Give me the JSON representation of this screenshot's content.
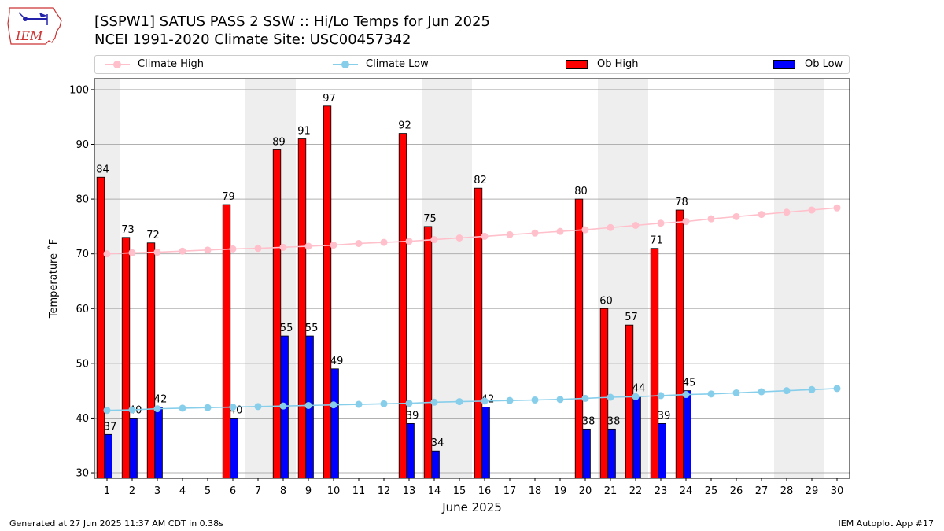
{
  "header": {
    "title_line1": "[SSPW1] SATUS PASS 2 SSW :: Hi/Lo Temps for Jun 2025",
    "title_line2": "NCEI 1991-2020 Climate Site: USC00457342",
    "logo_text": "IEM"
  },
  "legend": {
    "climate_high": "Climate High",
    "climate_low": "Climate Low",
    "ob_high": "Ob High",
    "ob_low": "Ob Low"
  },
  "footer": {
    "generated": "Generated at 27 Jun 2025 11:37 AM CDT in 0.38s",
    "app": "IEM Autoplot App #17"
  },
  "colors": {
    "climate_high": "#ffc0cb",
    "climate_low": "#87ceeb",
    "ob_high": "#ff0000",
    "ob_low": "#0000ff",
    "weekend_shade": "#eeeeee",
    "grid": "#b0b0b0"
  },
  "chart_data": {
    "type": "bar",
    "xlabel": "June 2025",
    "ylabel": "Temperature ˚F",
    "ylim": [
      29,
      102
    ],
    "xlim": [
      0.5,
      30.5
    ],
    "yticks": [
      30,
      40,
      50,
      60,
      70,
      80,
      90,
      100
    ],
    "x": [
      1,
      2,
      3,
      4,
      5,
      6,
      7,
      8,
      9,
      10,
      11,
      12,
      13,
      14,
      15,
      16,
      17,
      18,
      19,
      20,
      21,
      22,
      23,
      24,
      25,
      26,
      27,
      28,
      29,
      30
    ],
    "shaded_days": [
      1,
      7,
      8,
      14,
      15,
      21,
      22,
      28,
      29
    ],
    "grid": true,
    "legend_placement": "top",
    "series": [
      {
        "name": "Ob High",
        "kind": "bar",
        "values": [
          84,
          73,
          72,
          null,
          null,
          79,
          null,
          89,
          91,
          97,
          null,
          null,
          92,
          75,
          null,
          82,
          null,
          null,
          null,
          80,
          60,
          57,
          71,
          78,
          null,
          null,
          null,
          null,
          null,
          null
        ]
      },
      {
        "name": "Ob Low",
        "kind": "bar",
        "values": [
          37,
          40,
          42,
          null,
          null,
          40,
          null,
          55,
          55,
          49,
          null,
          null,
          39,
          34,
          null,
          42,
          null,
          null,
          null,
          38,
          38,
          44,
          39,
          45,
          null,
          null,
          null,
          null,
          null,
          null
        ]
      },
      {
        "name": "Climate High",
        "kind": "line",
        "values": [
          70.0,
          70.2,
          70.3,
          70.5,
          70.7,
          70.9,
          71.0,
          71.2,
          71.4,
          71.6,
          71.9,
          72.1,
          72.3,
          72.6,
          72.9,
          73.2,
          73.5,
          73.8,
          74.1,
          74.4,
          74.8,
          75.2,
          75.6,
          75.9,
          76.4,
          76.8,
          77.2,
          77.6,
          78.0,
          78.4
        ]
      },
      {
        "name": "Climate Low",
        "kind": "line",
        "values": [
          41.4,
          41.5,
          41.7,
          41.8,
          41.9,
          42.0,
          42.1,
          42.2,
          42.3,
          42.4,
          42.5,
          42.6,
          42.7,
          42.9,
          43.0,
          43.1,
          43.2,
          43.3,
          43.4,
          43.6,
          43.8,
          43.9,
          44.1,
          44.3,
          44.4,
          44.6,
          44.8,
          45.0,
          45.2,
          45.4
        ]
      }
    ]
  }
}
